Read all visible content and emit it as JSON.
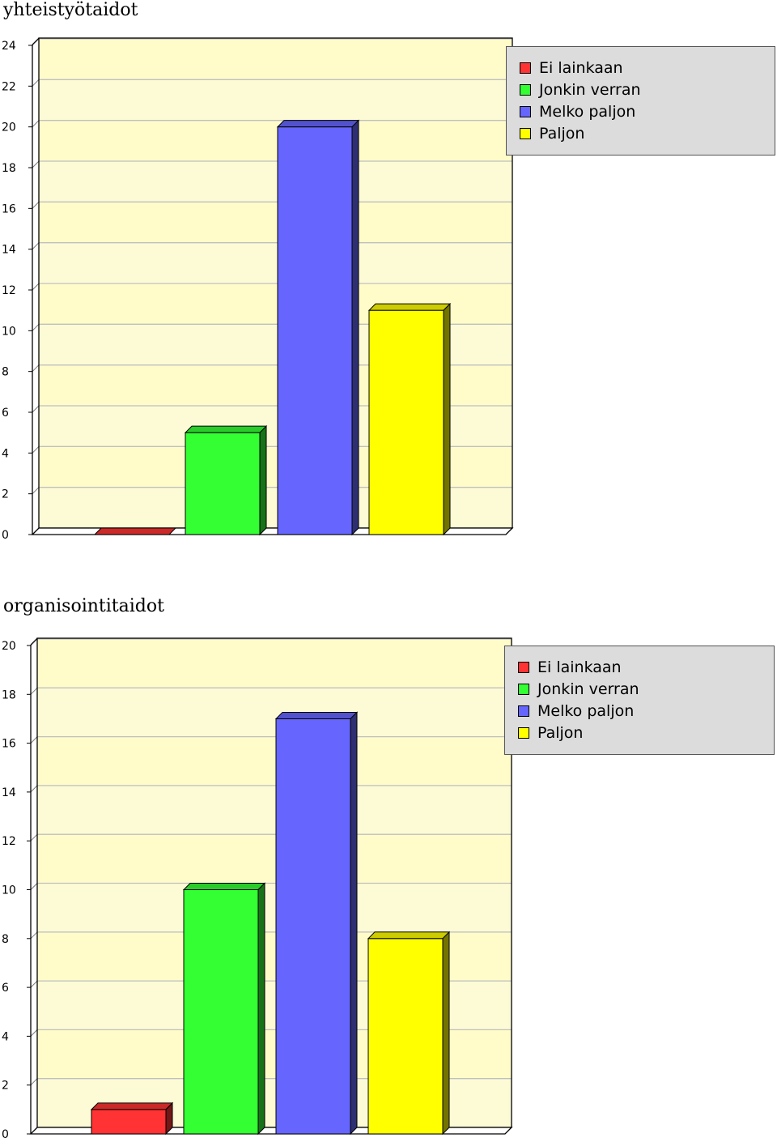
{
  "colors": {
    "plot_band_a": "#fdfbd5",
    "plot_band_b": "#fffcc9",
    "gridline": "#bfbfbf",
    "legend_bg": "#dcdcdc"
  },
  "chart_data": [
    {
      "type": "bar",
      "title": "yhteistyötaidot",
      "categories": [
        "Ei lainkaan",
        "Jonkin verran",
        "Melko paljon",
        "Paljon"
      ],
      "values": [
        0,
        5,
        20,
        11
      ],
      "colors": [
        "#ff3333",
        "#33ff33",
        "#6666ff",
        "#ffff00"
      ],
      "ylim": [
        0,
        24
      ],
      "yticks": [
        "0",
        "2",
        "4",
        "6",
        "8",
        "10",
        "12",
        "14",
        "16",
        "18",
        "20",
        "22",
        "24"
      ],
      "grid": true,
      "legend": [
        "Ei lainkaan",
        "Jonkin verran",
        "Melko paljon",
        "Paljon"
      ],
      "legend_position": "top-right"
    },
    {
      "type": "bar",
      "title": "organisointitaidot",
      "categories": [
        "Ei lainkaan",
        "Jonkin verran",
        "Melko paljon",
        "Paljon"
      ],
      "values": [
        1,
        10,
        17,
        8
      ],
      "colors": [
        "#ff3333",
        "#33ff33",
        "#6666ff",
        "#ffff00"
      ],
      "ylim": [
        0,
        20
      ],
      "yticks": [
        "0",
        "2",
        "4",
        "6",
        "8",
        "10",
        "12",
        "14",
        "16",
        "18",
        "20"
      ],
      "grid": true,
      "legend": [
        "Ei lainkaan",
        "Jonkin verran",
        "Melko paljon",
        "Paljon"
      ],
      "legend_position": "top-right"
    }
  ]
}
